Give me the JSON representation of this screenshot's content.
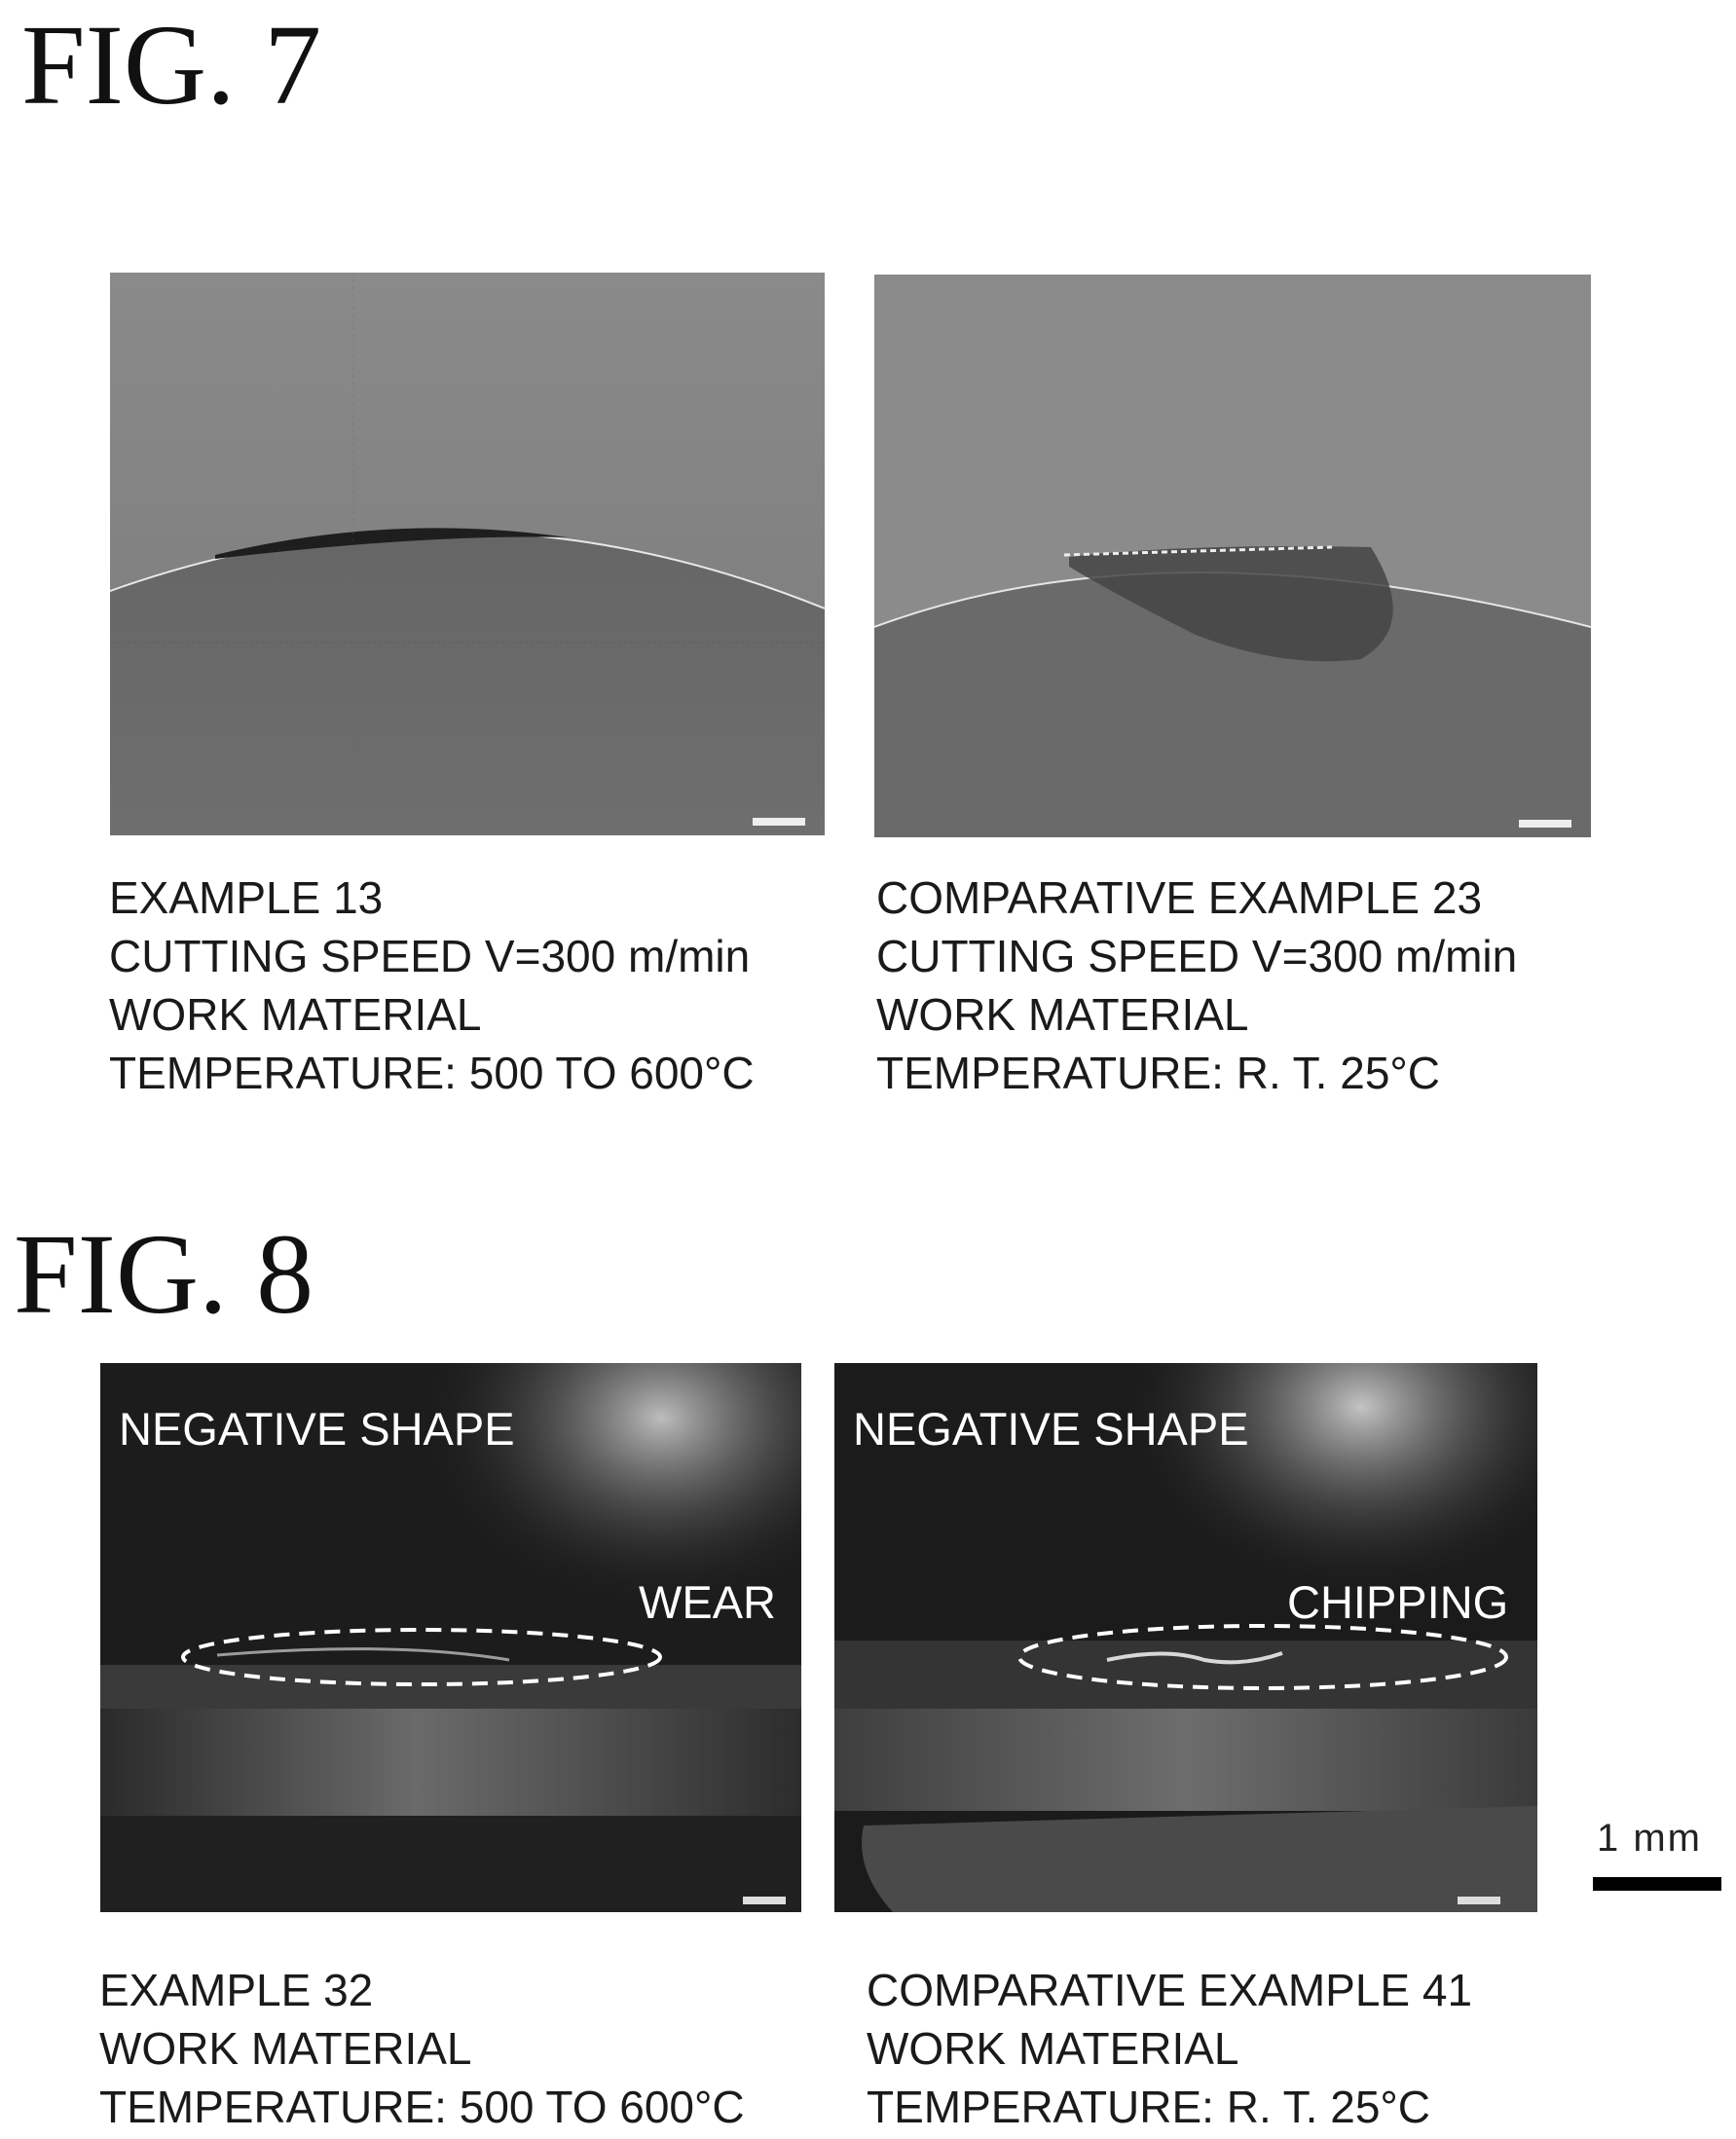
{
  "fig7": {
    "title": "FIG. 7",
    "left": {
      "caption": [
        "EXAMPLE 13",
        "CUTTING SPEED V=300 m/min",
        "WORK MATERIAL",
        "TEMPERATURE: 500 TO 600°C"
      ]
    },
    "right": {
      "caption": [
        "COMPARATIVE EXAMPLE 23",
        "CUTTING SPEED V=300 m/min",
        "WORK MATERIAL",
        "TEMPERATURE: R. T. 25°C"
      ]
    }
  },
  "fig8": {
    "title": "FIG. 8",
    "left": {
      "overlay": "NEGATIVE SHAPE",
      "annotation": "WEAR",
      "caption": [
        "EXAMPLE 32",
        "WORK MATERIAL",
        "TEMPERATURE: 500 TO 600°C"
      ]
    },
    "right": {
      "overlay": "NEGATIVE SHAPE",
      "annotation": "CHIPPING",
      "caption": [
        "COMPARATIVE EXAMPLE 41",
        "WORK MATERIAL",
        "TEMPERATURE: R. T. 25°C"
      ]
    },
    "scale_label": "1 mm"
  }
}
